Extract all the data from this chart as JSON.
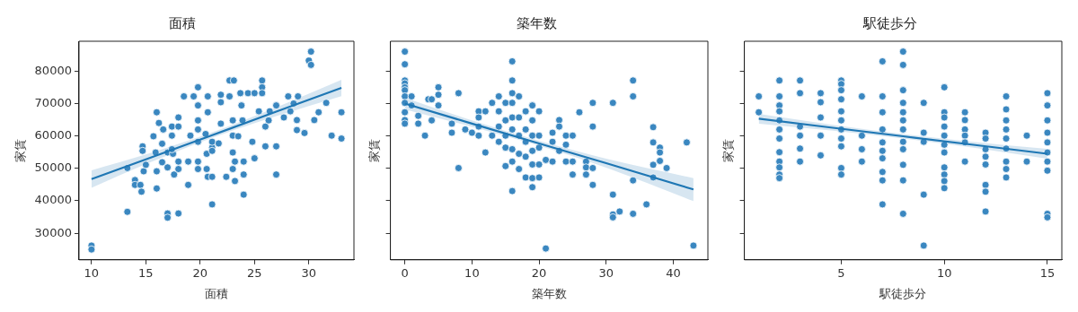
{
  "chart_data": [
    {
      "type": "scatter",
      "title": "面積",
      "xlabel": "面積",
      "ylabel": "家賃",
      "xlim": [
        8.85,
        34.15
      ],
      "xticks": [
        10,
        15,
        20,
        25,
        30
      ],
      "ylim": [
        21800,
        89200
      ],
      "yticks": [
        30000,
        40000,
        50000,
        60000,
        70000,
        80000
      ],
      "grid": false,
      "legend": false,
      "marker": "circle",
      "series": [
        {
          "type": "scatter",
          "color": "#3a87c0",
          "x": [
            10,
            10,
            13.3,
            13.3,
            14,
            14,
            14.5,
            14.6,
            14.7,
            14.7,
            14.8,
            15,
            15.7,
            16,
            16.2,
            16,
            16,
            15.9,
            16.5,
            16.6,
            16.5,
            17,
            17,
            17,
            17,
            18,
            17.4,
            17.4,
            17.5,
            17.6,
            17.4,
            18,
            18,
            18,
            18,
            18.5,
            18.9,
            19.1,
            18.9,
            19.4,
            19.8,
            19.8,
            19.8,
            19.8,
            19.8,
            19.8,
            19.8,
            20.5,
            20.6,
            20.7,
            20.7,
            20.6,
            20.7,
            21.1,
            21.1,
            21.1,
            21.1,
            21.1,
            21.9,
            21.9,
            21.9,
            21.7,
            22.7,
            23.1,
            22.7,
            23,
            23,
            23,
            23.2,
            23.2,
            22.4,
            23,
            23.7,
            23.8,
            23.9,
            23.5,
            24,
            24,
            24,
            24.4,
            25,
            24.8,
            25,
            25.7,
            25.7,
            25.7,
            25.4,
            26,
            26,
            26.3,
            26.4,
            27,
            27,
            27,
            27.7,
            28.1,
            28.3,
            28.6,
            28.9,
            28.9,
            29,
            29.6,
            30,
            30.2,
            30.2,
            30.5,
            30.9,
            31.6,
            32.1,
            33,
            33
          ],
          "values": [
            26200,
            25000,
            50100,
            36600,
            46400,
            44900,
            44900,
            42800,
            56800,
            55400,
            49100,
            51100,
            59900,
            67300,
            64000,
            49100,
            43800,
            54900,
            57600,
            62000,
            51900,
            54900,
            50300,
            36100,
            34800,
            36100,
            62900,
            60100,
            54500,
            48100,
            55900,
            65700,
            62900,
            52100,
            49800,
            72200,
            44900,
            60100,
            52100,
            72200,
            75000,
            69400,
            64800,
            62000,
            58200,
            52100,
            49800,
            60600,
            54500,
            67300,
            72200,
            49800,
            47400,
            38900,
            47400,
            56400,
            58200,
            55400,
            72700,
            70400,
            63800,
            57700,
            77100,
            77100,
            72200,
            64800,
            60100,
            54900,
            46100,
            52100,
            47400,
            49800,
            73200,
            69400,
            64800,
            59900,
            52100,
            48100,
            41900,
            73200,
            73200,
            58200,
            53100,
            77100,
            75000,
            73200,
            67600,
            56800,
            62900,
            64800,
            67600,
            69400,
            48100,
            56800,
            65700,
            72200,
            67600,
            70000,
            64900,
            61800,
            72200,
            60900,
            83200,
            81900,
            86000,
            64900,
            67300,
            70200,
            60100,
            67300,
            59200
          ]
        },
        {
          "type": "line",
          "marker": "none",
          "color": "#1f77b4",
          "x": [
            10,
            15,
            21,
            27,
            33
          ],
          "values": [
            46700,
            52800,
            60100,
            67500,
            74800
          ],
          "lower": [
            44000,
            51300,
            59300,
            66100,
            72300
          ],
          "upper": [
            49400,
            54300,
            61000,
            68800,
            77300
          ]
        }
      ]
    },
    {
      "type": "scatter",
      "title": "築年数",
      "xlabel": "築年数",
      "ylabel": "家賃",
      "xlim": [
        -2.15,
        45.15
      ],
      "xticks": [
        0,
        10,
        20,
        30,
        40
      ],
      "ylim": [
        21800,
        89200
      ],
      "yticks": [
        30000,
        40000,
        50000,
        60000,
        70000,
        80000
      ],
      "tick_labels": "x",
      "grid": false,
      "legend": false,
      "marker": "circle",
      "series": [
        {
          "type": "scatter",
          "color": "#3a87c0",
          "x": [
            0,
            0,
            0,
            0,
            0,
            0,
            0,
            0,
            0,
            0,
            0,
            1,
            1,
            2,
            2,
            3,
            3.5,
            4,
            4,
            5,
            5,
            5,
            7,
            7,
            8,
            8,
            9,
            10,
            11,
            11,
            11,
            11,
            12,
            12,
            13,
            13,
            14,
            14,
            14,
            14,
            15,
            15,
            15,
            15,
            15,
            16,
            16,
            16,
            16,
            16,
            16,
            16,
            16,
            16,
            17,
            17,
            17,
            17,
            17,
            18,
            18,
            18,
            18,
            18,
            19,
            19,
            19,
            19,
            19,
            19,
            19,
            20,
            20,
            20,
            20,
            20,
            21,
            21,
            22,
            22,
            22,
            23,
            23,
            23,
            24,
            24,
            24,
            25,
            25,
            25,
            26,
            27,
            27,
            27,
            28,
            28,
            28,
            28,
            31,
            31,
            31,
            31,
            32,
            34,
            34,
            34,
            34,
            36,
            37,
            37,
            37,
            37,
            38,
            38,
            38,
            39,
            42,
            43
          ],
          "values": [
            86000,
            82100,
            77100,
            76200,
            75000,
            74100,
            72200,
            70200,
            67300,
            64900,
            63800,
            72200,
            69400,
            66200,
            63800,
            60100,
            71300,
            71300,
            64800,
            75000,
            72700,
            69400,
            63800,
            61000,
            73200,
            50100,
            62000,
            61000,
            67600,
            65700,
            62900,
            60100,
            67600,
            54900,
            70200,
            60100,
            72200,
            67600,
            62900,
            58200,
            70200,
            64800,
            60100,
            56400,
            50700,
            83000,
            77100,
            73200,
            70200,
            65700,
            62000,
            55900,
            52100,
            43000,
            72200,
            65700,
            60100,
            54500,
            49800,
            67600,
            62000,
            58200,
            53600,
            47200,
            69400,
            64800,
            60100,
            55400,
            51200,
            47000,
            44200,
            67600,
            60100,
            56400,
            51200,
            47200,
            25300,
            52600,
            61000,
            58200,
            52100,
            64900,
            62900,
            55400,
            60100,
            57300,
            52100,
            60100,
            52100,
            48100,
            67300,
            52100,
            50300,
            48100,
            70200,
            62900,
            50100,
            44900,
            70200,
            41900,
            35800,
            34900,
            36700,
            77100,
            72200,
            46300,
            36000,
            38900,
            62700,
            58000,
            51100,
            47200,
            56400,
            54900,
            52300,
            50100,
            58000,
            26200
          ]
        },
        {
          "type": "line",
          "marker": "none",
          "color": "#1f77b4",
          "x": [
            0,
            10,
            20,
            30,
            43
          ],
          "values": [
            70000,
            63800,
            57700,
            51600,
            43500
          ],
          "lower": [
            68200,
            62800,
            57000,
            50200,
            39900
          ],
          "upper": [
            71800,
            64800,
            58500,
            53000,
            47000
          ]
        }
      ]
    },
    {
      "type": "scatter",
      "title": "駅徒歩分",
      "xlabel": "駅徒歩分",
      "ylabel": "家賃",
      "xlim": [
        0.3,
        15.7
      ],
      "xticks": [
        5,
        10,
        15
      ],
      "ylim": [
        21800,
        89200
      ],
      "yticks": [
        30000,
        40000,
        50000,
        60000,
        70000,
        80000
      ],
      "tick_labels": "x",
      "grid": false,
      "legend": false,
      "marker": "circle",
      "series": [
        {
          "type": "scatter",
          "color": "#3a87c0",
          "x": [
            1,
            1,
            2,
            2,
            2,
            2,
            2,
            2,
            2,
            2,
            2,
            2,
            2,
            2,
            3,
            3,
            3,
            3,
            3,
            3,
            4,
            4,
            4,
            4,
            4,
            5,
            5,
            5,
            5,
            5,
            5,
            5,
            5,
            5,
            5,
            5,
            6,
            6,
            6,
            6,
            7,
            7,
            7,
            7,
            7,
            7,
            7,
            7,
            7,
            7,
            8,
            8,
            8,
            8,
            8,
            8,
            8,
            8,
            8,
            8,
            8,
            8,
            9,
            9,
            9,
            9,
            9,
            10,
            10,
            10,
            10,
            10,
            10,
            10,
            10,
            10,
            10,
            10,
            11,
            11,
            11,
            11,
            11,
            11,
            12,
            12,
            12,
            12,
            12,
            12,
            12,
            12,
            13,
            13,
            13,
            13,
            13,
            13,
            13,
            13,
            13,
            14,
            14,
            15,
            15,
            15,
            15,
            15,
            15,
            15,
            15,
            15,
            15
          ],
          "values": [
            72200,
            67300,
            77100,
            72200,
            69400,
            67600,
            64800,
            62000,
            59200,
            55000,
            52100,
            50300,
            48100,
            47000,
            77100,
            73200,
            62900,
            60100,
            56100,
            52100,
            73200,
            70400,
            65700,
            60100,
            54000,
            77100,
            76000,
            74100,
            71300,
            67600,
            64800,
            62000,
            59200,
            56800,
            50100,
            48100,
            72200,
            60100,
            55900,
            52100,
            83000,
            72200,
            67300,
            62000,
            58000,
            55400,
            53100,
            48900,
            46300,
            38900,
            86000,
            81900,
            74100,
            70200,
            67300,
            64800,
            62000,
            58200,
            55900,
            51100,
            46300,
            36000,
            70200,
            61000,
            58200,
            41900,
            26200,
            75000,
            67300,
            65700,
            62900,
            60100,
            57300,
            54900,
            50300,
            48100,
            46100,
            43900,
            67300,
            64900,
            62000,
            60100,
            58000,
            52100,
            61000,
            59200,
            55900,
            53600,
            51200,
            44900,
            42800,
            36700,
            72200,
            68200,
            64800,
            62000,
            59200,
            56100,
            52100,
            49800,
            47200,
            60100,
            52100,
            73200,
            69400,
            64800,
            61000,
            58000,
            54900,
            52100,
            49300,
            36000,
            34900
          ]
        },
        {
          "type": "line",
          "marker": "none",
          "color": "#1f77b4",
          "x": [
            1,
            4.5,
            8,
            11.5,
            15
          ],
          "values": [
            65300,
            62600,
            59900,
            57200,
            54500
          ],
          "lower": [
            63800,
            61700,
            59200,
            56300,
            53000
          ],
          "upper": [
            66800,
            63500,
            60600,
            58100,
            56000
          ]
        }
      ]
    }
  ]
}
